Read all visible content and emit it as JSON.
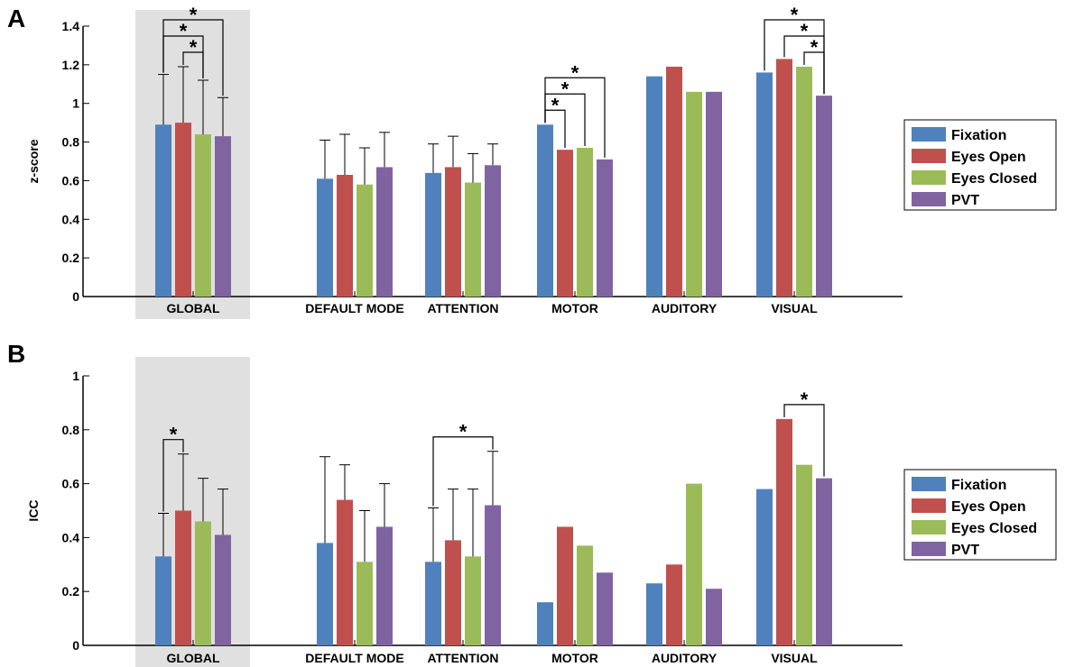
{
  "colors": {
    "Fixation": "#4f81bd",
    "Eyes Open": "#c0504d",
    "Eyes Closed": "#9bbb59",
    "PVT": "#8064a2",
    "highlight": "#e0e0e0"
  },
  "chart_data": [
    {
      "type": "bar",
      "panel_label": "A",
      "ylabel": "z-score",
      "ylim": [
        0,
        1.4
      ],
      "yticks": [
        "0",
        "0.2",
        "0.4",
        "0.6",
        "0.8",
        "1",
        "1.2",
        "1.4"
      ],
      "categories": [
        "GLOBAL",
        "DEFAULT MODE",
        "ATTENTION",
        "MOTOR",
        "AUDITORY",
        "VISUAL"
      ],
      "highlighted_category": "GLOBAL",
      "legend": {
        "placement": "right",
        "entries": [
          "Fixation",
          "Eyes Open",
          "Eyes Closed",
          "PVT"
        ]
      },
      "series": [
        {
          "name": "Fixation",
          "values": [
            0.89,
            0.61,
            0.64,
            0.89,
            1.14,
            1.16
          ],
          "error_upper": [
            1.15,
            0.81,
            0.79,
            null,
            null,
            null
          ]
        },
        {
          "name": "Eyes Open",
          "values": [
            0.9,
            0.63,
            0.67,
            0.76,
            1.19,
            1.23
          ],
          "error_upper": [
            1.19,
            0.84,
            0.83,
            null,
            null,
            null
          ]
        },
        {
          "name": "Eyes Closed",
          "values": [
            0.84,
            0.58,
            0.59,
            0.77,
            1.06,
            1.19
          ],
          "error_upper": [
            1.12,
            0.77,
            0.74,
            null,
            null,
            null
          ]
        },
        {
          "name": "PVT",
          "values": [
            0.83,
            0.67,
            0.68,
            0.71,
            1.06,
            1.04
          ],
          "error_upper": [
            1.03,
            0.85,
            0.79,
            null,
            null,
            null
          ]
        }
      ],
      "significance": [
        {
          "category": 0,
          "from": 0,
          "to": 3,
          "label": "*"
        },
        {
          "category": 0,
          "from": 0,
          "to": 2,
          "label": "*"
        },
        {
          "category": 0,
          "from": 1,
          "to": 2,
          "label": "*"
        },
        {
          "category": 3,
          "from": 0,
          "to": 3,
          "label": "*"
        },
        {
          "category": 3,
          "from": 0,
          "to": 2,
          "label": "*"
        },
        {
          "category": 3,
          "from": 0,
          "to": 1,
          "label": "*"
        },
        {
          "category": 5,
          "from": 0,
          "to": 3,
          "label": "*"
        },
        {
          "category": 5,
          "from": 1,
          "to": 3,
          "label": "*"
        },
        {
          "category": 5,
          "from": 2,
          "to": 3,
          "label": "*"
        }
      ]
    },
    {
      "type": "bar",
      "panel_label": "B",
      "ylabel": "ICC",
      "ylim": [
        0,
        1
      ],
      "yticks": [
        "0",
        "0.2",
        "0.4",
        "0.6",
        "0.8",
        "1"
      ],
      "categories": [
        "GLOBAL",
        "DEFAULT MODE",
        "ATTENTION",
        "MOTOR",
        "AUDITORY",
        "VISUAL"
      ],
      "highlighted_category": "GLOBAL",
      "legend": {
        "placement": "right",
        "entries": [
          "Fixation",
          "Eyes Open",
          "Eyes Closed",
          "PVT"
        ]
      },
      "series": [
        {
          "name": "Fixation",
          "values": [
            0.33,
            0.38,
            0.31,
            0.16,
            0.23,
            0.58
          ],
          "error_upper": [
            0.49,
            0.7,
            0.51,
            null,
            null,
            null
          ]
        },
        {
          "name": "Eyes Open",
          "values": [
            0.5,
            0.54,
            0.39,
            0.44,
            0.3,
            0.84
          ],
          "error_upper": [
            0.71,
            0.67,
            0.58,
            null,
            null,
            null
          ]
        },
        {
          "name": "Eyes Closed",
          "values": [
            0.46,
            0.31,
            0.33,
            0.37,
            0.6,
            0.67
          ],
          "error_upper": [
            0.62,
            0.5,
            0.58,
            null,
            null,
            null
          ]
        },
        {
          "name": "PVT",
          "values": [
            0.41,
            0.44,
            0.52,
            0.27,
            0.21,
            0.62
          ],
          "error_upper": [
            0.58,
            0.6,
            0.72,
            null,
            null,
            null
          ]
        }
      ],
      "significance": [
        {
          "category": 0,
          "from": 0,
          "to": 1,
          "label": "*"
        },
        {
          "category": 2,
          "from": 0,
          "to": 3,
          "label": "*"
        },
        {
          "category": 5,
          "from": 1,
          "to": 3,
          "label": "*"
        }
      ]
    }
  ]
}
